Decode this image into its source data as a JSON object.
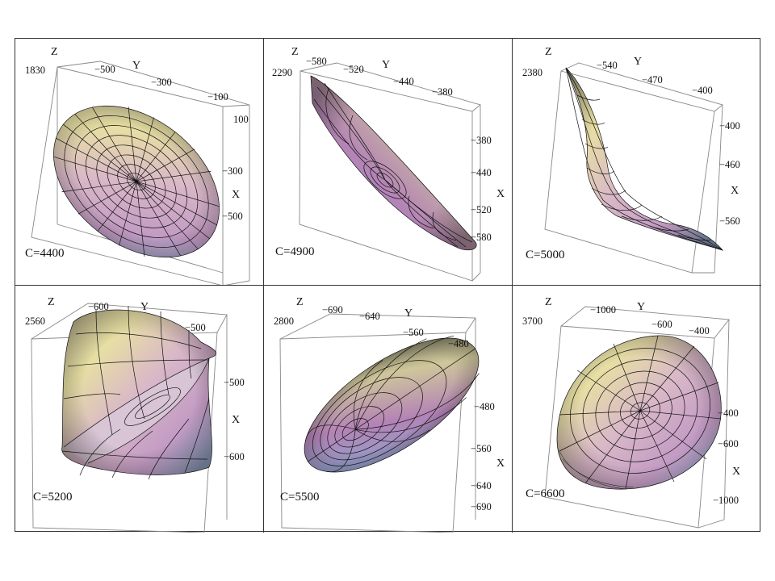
{
  "panels": [
    {
      "c_label": "C=4400",
      "z_axis": {
        "label": "Z",
        "ticks": [
          "1830"
        ]
      },
      "y_axis": {
        "label": "Y",
        "ticks": [
          "−500",
          "−300",
          "−100"
        ]
      },
      "x_axis": {
        "label": "X",
        "ticks": [
          "100",
          "−300",
          "−500"
        ]
      }
    },
    {
      "c_label": "C=4900",
      "z_axis": {
        "label": "Z",
        "ticks": [
          "2290"
        ]
      },
      "y_axis": {
        "label": "Y",
        "ticks": [
          "−580",
          "−520",
          "−440",
          "−380"
        ]
      },
      "x_axis": {
        "label": "X",
        "ticks": [
          "−380",
          "−440",
          "−520",
          "−580"
        ]
      }
    },
    {
      "c_label": "C=5000",
      "z_axis": {
        "label": "Z",
        "ticks": [
          "2380"
        ]
      },
      "y_axis": {
        "label": "Y",
        "ticks": [
          "−540",
          "−470",
          "−400"
        ]
      },
      "x_axis": {
        "label": "X",
        "ticks": [
          "−400",
          "−460",
          "−560"
        ]
      }
    },
    {
      "c_label": "C=5200",
      "z_axis": {
        "label": "Z",
        "ticks": [
          "2560"
        ]
      },
      "y_axis": {
        "label": "Y",
        "ticks": [
          "−600",
          "−500"
        ]
      },
      "x_axis": {
        "label": "X",
        "ticks": [
          "−500",
          "−600"
        ]
      }
    },
    {
      "c_label": "C=5500",
      "z_axis": {
        "label": "Z",
        "ticks": [
          "2800"
        ]
      },
      "y_axis": {
        "label": "Y",
        "ticks": [
          "−690",
          "−640",
          "−560",
          "−480"
        ]
      },
      "x_axis": {
        "label": "X",
        "ticks": [
          "−480",
          "−560",
          "−640",
          "−690"
        ]
      }
    },
    {
      "c_label": "C=6600",
      "z_axis": {
        "label": "Z",
        "ticks": [
          "3700"
        ]
      },
      "y_axis": {
        "label": "Y",
        "ticks": [
          "−1000",
          "−600",
          "−400"
        ]
      },
      "x_axis": {
        "label": "X",
        "ticks": [
          "−400",
          "−600",
          "−1000"
        ]
      }
    }
  ]
}
